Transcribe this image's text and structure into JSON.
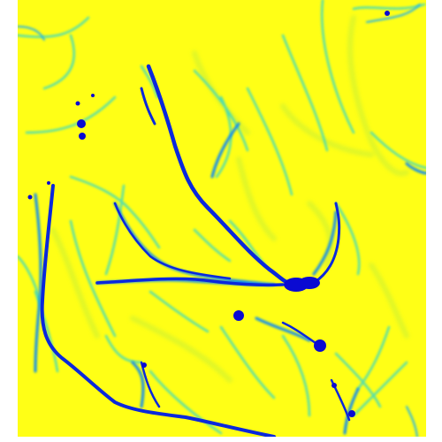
{
  "image": {
    "kind": "flow-accumulation raster (drainage network)",
    "colors": {
      "background": "#ffffff",
      "low": "#ffff16",
      "low_mid": "#d8f024",
      "mid": "#55e6a0",
      "mid_high": "#12c6ea",
      "high": "#0a64e6",
      "peak": "#0a0ad2"
    }
  }
}
